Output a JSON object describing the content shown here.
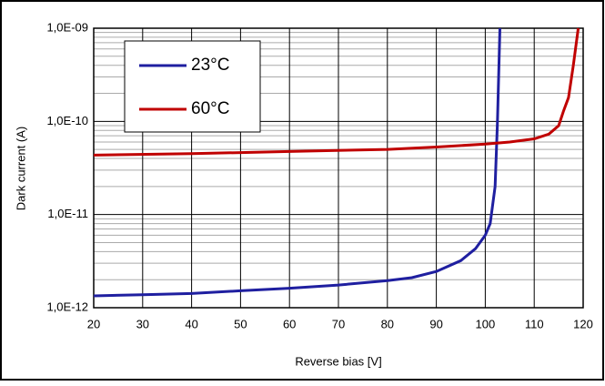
{
  "chart_data": {
    "type": "line",
    "xlabel": "Reverse bias [V]",
    "ylabel": "Dark current  (A)",
    "xlim": [
      20,
      120
    ],
    "xticks": [
      20,
      30,
      40,
      50,
      60,
      70,
      80,
      90,
      100,
      110,
      120
    ],
    "ylim": [
      1e-12,
      1e-09
    ],
    "log_y": true,
    "grid": true,
    "legend": "upper left",
    "yticks": [
      {
        "value": 1e-12,
        "label": "1,0E-12"
      },
      {
        "value": 1e-11,
        "label": "1,0E-11"
      },
      {
        "value": 1e-10,
        "label": "1,0E-10"
      },
      {
        "value": 1e-09,
        "label": "1,0E-09"
      }
    ],
    "yminorticks": [
      2e-12,
      3e-12,
      4e-12,
      5e-12,
      6e-12,
      7e-12,
      8e-12,
      9e-12,
      2e-11,
      3e-11,
      4e-11,
      5e-11,
      6e-11,
      7e-11,
      8e-11,
      9e-11,
      2e-10,
      3e-10,
      4e-10,
      5e-10,
      6e-10,
      7e-10,
      8e-10,
      9e-10
    ],
    "series": [
      {
        "name": "23°C",
        "color": "#1f1fa0",
        "x": [
          20,
          30,
          40,
          50,
          60,
          70,
          80,
          85,
          90,
          95,
          98,
          100,
          101,
          102,
          102.5,
          103
        ],
        "values": [
          1.34e-12,
          1.38e-12,
          1.42e-12,
          1.52e-12,
          1.62e-12,
          1.75e-12,
          1.95e-12,
          2.1e-12,
          2.45e-12,
          3.2e-12,
          4.3e-12,
          6e-12,
          8e-12,
          2e-11,
          1e-10,
          1e-09
        ]
      },
      {
        "name": "60°C",
        "color": "#c00000",
        "x": [
          20,
          40,
          60,
          80,
          90,
          100,
          105,
          110,
          113,
          115,
          116,
          117,
          118,
          119
        ],
        "values": [
          4.34e-11,
          4.5e-11,
          4.75e-11,
          5e-11,
          5.3e-11,
          5.7e-11,
          6e-11,
          6.5e-11,
          7.3e-11,
          9e-11,
          1.3e-10,
          1.8e-10,
          4e-10,
          1e-09
        ]
      }
    ]
  }
}
